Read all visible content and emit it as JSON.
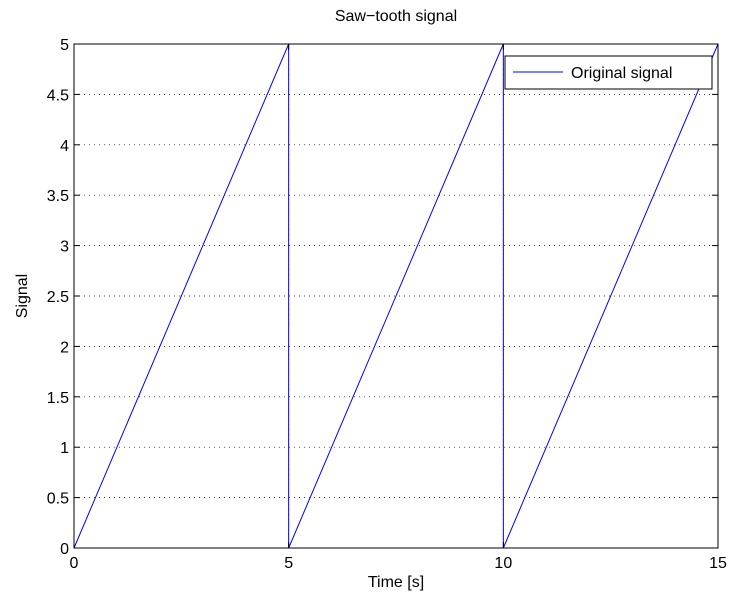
{
  "chart_data": {
    "type": "line",
    "title": "Saw−tooth signal",
    "xlabel": "Time [s]",
    "ylabel": "Signal",
    "xlim": [
      0,
      15
    ],
    "ylim": [
      0,
      5
    ],
    "x_ticks": [
      0,
      5,
      10,
      15
    ],
    "x_tick_labels": [
      "0",
      "5",
      "10",
      "15"
    ],
    "y_ticks": [
      0,
      0.5,
      1,
      1.5,
      2,
      2.5,
      3,
      3.5,
      4,
      4.5,
      5
    ],
    "y_tick_labels": [
      "0",
      "0.5",
      "1",
      "1.5",
      "2",
      "2.5",
      "3",
      "3.5",
      "4",
      "4.5",
      "5"
    ],
    "grid": true,
    "legend_position": "top-right",
    "series": [
      {
        "name": "Original signal",
        "color": "#0000ff",
        "x": [
          0,
          5,
          5,
          10,
          10,
          15
        ],
        "y": [
          0,
          5,
          0,
          5,
          0,
          5
        ]
      }
    ]
  }
}
